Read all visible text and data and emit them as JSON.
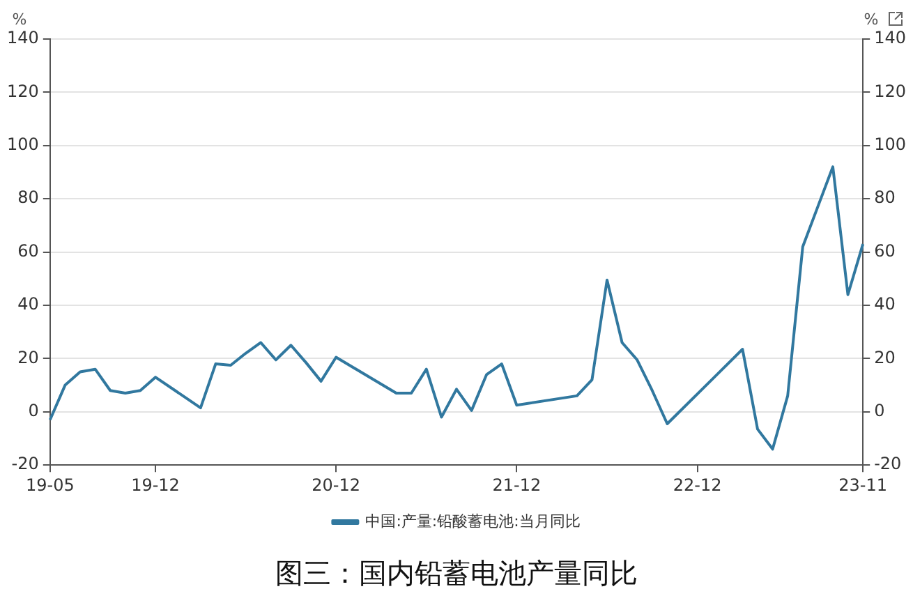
{
  "chart_data": {
    "type": "line",
    "title": "图三：国内铅蓄电池产量同比",
    "ylabel": "%",
    "y2label": "%",
    "categories": [
      "19-05",
      null,
      null,
      null,
      null,
      null,
      null,
      "19-12",
      null,
      null,
      null,
      null,
      null,
      null,
      null,
      null,
      null,
      null,
      null,
      "20-12",
      null,
      null,
      null,
      null,
      null,
      null,
      null,
      null,
      null,
      null,
      null,
      "21-12",
      null,
      null,
      null,
      null,
      null,
      null,
      null,
      null,
      null,
      null,
      null,
      "22-12",
      null,
      null,
      null,
      null,
      null,
      null,
      null,
      null,
      null,
      null,
      "23-11"
    ],
    "series": [
      {
        "name": "中国:产量:铅酸蓄电池:当月同比",
        "color": "#31789f",
        "values": [
          -3,
          10,
          15,
          16,
          8,
          7,
          8,
          13,
          null,
          null,
          1.5,
          18,
          17.5,
          22,
          26,
          19.5,
          25,
          18.5,
          11.5,
          20.5,
          null,
          null,
          null,
          7,
          7,
          16,
          -2,
          8.5,
          0.5,
          14,
          18,
          2.5,
          null,
          null,
          null,
          6,
          12,
          49.5,
          26,
          19.5,
          8,
          -4.5,
          null,
          null,
          null,
          null,
          23.5,
          -6.5,
          -14,
          6,
          62,
          77,
          92,
          44,
          63
        ]
      }
    ],
    "ylim": [
      -20,
      140
    ],
    "yticks": [
      -20,
      0,
      20,
      40,
      60,
      80,
      100,
      120,
      140
    ],
    "y2lim": [
      -20,
      140
    ],
    "y2ticks": [
      -20,
      0,
      20,
      40,
      60,
      80,
      100,
      120,
      140
    ],
    "grid": "y",
    "legend": "bottom",
    "marker": "none",
    "line_style": "solid"
  }
}
